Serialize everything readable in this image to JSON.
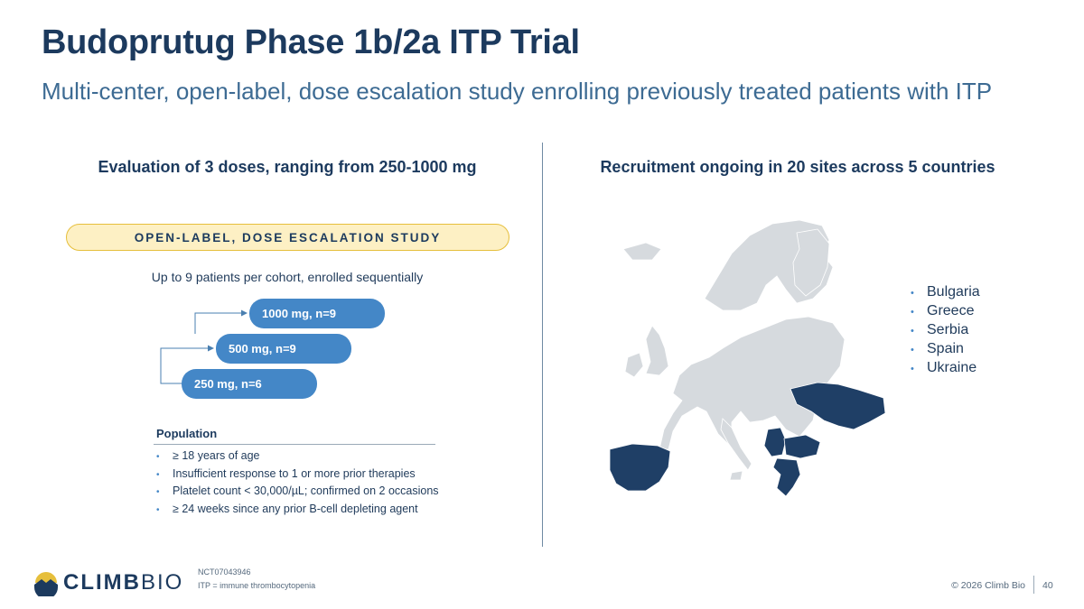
{
  "slide": {
    "title": "Budoprutug Phase 1b/2a ITP Trial",
    "subtitle": "Multi-center, open-label, dose escalation study enrolling previously treated patients with ITP"
  },
  "left": {
    "heading": "Evaluation of 3 doses, ranging from 250-1000 mg",
    "banner": "OPEN-LABEL, DOSE ESCALATION STUDY",
    "cohort_note": "Up to 9 patients per cohort, enrolled sequentially",
    "doses": [
      "1000 mg, n=9",
      "500 mg, n=9",
      "250 mg, n=6"
    ],
    "population": {
      "title": "Population",
      "items": [
        "≥ 18 years of age",
        "Insufficient response to 1 or more prior therapies",
        "Platelet count < 30,000/µL; confirmed on 2 occasions",
        "≥ 24 weeks since any prior B-cell depleting agent"
      ]
    }
  },
  "right": {
    "heading": "Recruitment ongoing in 20 sites across 5 countries",
    "countries": [
      "Bulgaria",
      "Greece",
      "Serbia",
      "Spain",
      "Ukraine"
    ],
    "map_colors": {
      "highlight": "#1f3f66",
      "base": "#d6dade",
      "border": "#ffffff"
    }
  },
  "footer": {
    "logo_bold": "CLIMB",
    "logo_light": "BIO",
    "note_trial_id": "NCT07043946",
    "note_abbrev": "ITP = immune thrombocytopenia",
    "copyright": "© 2026 Climb Bio",
    "page_number": "40"
  },
  "icons": {
    "bullet": "bullet-icon",
    "logo": "mountain-sun-logo-icon"
  },
  "colors": {
    "title": "#1c3a5e",
    "subtitle": "#3d6b93",
    "dose_pill": "#4487c7",
    "banner_fill": "#fdf0c4",
    "banner_border": "#e6bf3c"
  }
}
